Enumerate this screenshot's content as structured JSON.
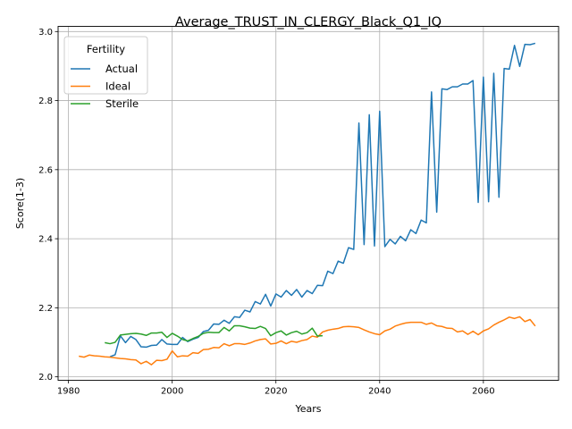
{
  "chart_data": {
    "type": "line",
    "title": "Average_TRUST_IN_CLERGY_Black_Q1_IQ",
    "xlabel": "Years",
    "ylabel": "Score(1-3)",
    "xlim": [
      1978,
      2074.5
    ],
    "ylim": [
      1.99,
      3.015
    ],
    "xticks": [
      1980,
      2000,
      2020,
      2040,
      2060
    ],
    "yticks": [
      2.0,
      2.2,
      2.4,
      2.6,
      2.8,
      3.0
    ],
    "ytick_labels": [
      "2.0",
      "2.2",
      "2.4",
      "2.6",
      "2.8",
      "3.0"
    ],
    "grid": true,
    "legend": {
      "title": "Fertility",
      "position": "top-left"
    },
    "series": [
      {
        "name": "Actual",
        "color": "#1f77b4",
        "x": [
          1988,
          1989,
          1990,
          1991,
          1992,
          1993,
          1994,
          1995,
          1996,
          1997,
          1998,
          1999,
          2000,
          2001,
          2002,
          2003,
          2004,
          2005,
          2006,
          2007,
          2008,
          2009,
          2010,
          2011,
          2012,
          2013,
          2014,
          2015,
          2016,
          2017,
          2018,
          2019,
          2020,
          2021,
          2022,
          2023,
          2024,
          2025,
          2026,
          2027,
          2028,
          2029,
          2030,
          2031,
          2032,
          2033,
          2034,
          2035,
          2036,
          2037,
          2038,
          2039,
          2040,
          2041,
          2042,
          2043,
          2044,
          2045,
          2046,
          2047,
          2048,
          2049,
          2050,
          2051,
          2052,
          2053,
          2054,
          2055,
          2056,
          2057,
          2058,
          2059,
          2060,
          2061,
          2062,
          2063,
          2064,
          2065,
          2066,
          2067,
          2068,
          2069,
          2070
        ],
        "y": [
          2.058,
          2.064,
          2.119,
          2.099,
          2.117,
          2.108,
          2.087,
          2.086,
          2.091,
          2.092,
          2.108,
          2.095,
          2.094,
          2.094,
          2.114,
          2.102,
          2.109,
          2.114,
          2.131,
          2.135,
          2.153,
          2.152,
          2.164,
          2.155,
          2.174,
          2.172,
          2.193,
          2.188,
          2.218,
          2.211,
          2.239,
          2.205,
          2.24,
          2.231,
          2.25,
          2.236,
          2.253,
          2.231,
          2.25,
          2.241,
          2.265,
          2.264,
          2.306,
          2.299,
          2.335,
          2.329,
          2.374,
          2.369,
          2.735,
          2.383,
          2.759,
          2.379,
          2.769,
          2.377,
          2.398,
          2.385,
          2.407,
          2.394,
          2.426,
          2.415,
          2.454,
          2.446,
          2.825,
          2.477,
          2.834,
          2.832,
          2.84,
          2.84,
          2.848,
          2.848,
          2.858,
          2.505,
          2.868,
          2.507,
          2.879,
          2.52,
          2.893,
          2.891,
          2.96,
          2.899,
          2.963,
          2.962,
          2.966
        ]
      },
      {
        "name": "Ideal",
        "color": "#ff7f0e",
        "x": [
          1982,
          1983,
          1984,
          1985,
          1986,
          1987,
          1988,
          1989,
          1990,
          1991,
          1992,
          1993,
          1994,
          1995,
          1996,
          1997,
          1998,
          1999,
          2000,
          2001,
          2002,
          2003,
          2004,
          2005,
          2006,
          2007,
          2008,
          2009,
          2010,
          2011,
          2012,
          2013,
          2014,
          2015,
          2016,
          2017,
          2018,
          2019,
          2020,
          2021,
          2022,
          2023,
          2024,
          2025,
          2026,
          2027,
          2028,
          2029,
          2030,
          2031,
          2032,
          2033,
          2034,
          2035,
          2036,
          2037,
          2038,
          2039,
          2040,
          2041,
          2042,
          2043,
          2044,
          2045,
          2046,
          2047,
          2048,
          2049,
          2050,
          2051,
          2052,
          2053,
          2054,
          2055,
          2056,
          2057,
          2058,
          2059,
          2060,
          2061,
          2062,
          2063,
          2064,
          2065,
          2066,
          2067,
          2068,
          2069,
          2070
        ],
        "y": [
          2.06,
          2.057,
          2.063,
          2.061,
          2.06,
          2.058,
          2.057,
          2.055,
          2.053,
          2.052,
          2.05,
          2.049,
          2.038,
          2.045,
          2.035,
          2.048,
          2.047,
          2.051,
          2.075,
          2.058,
          2.061,
          2.06,
          2.07,
          2.068,
          2.079,
          2.08,
          2.085,
          2.084,
          2.096,
          2.09,
          2.096,
          2.096,
          2.094,
          2.098,
          2.104,
          2.108,
          2.11,
          2.095,
          2.097,
          2.104,
          2.096,
          2.103,
          2.1,
          2.105,
          2.108,
          2.118,
          2.115,
          2.13,
          2.135,
          2.138,
          2.14,
          2.145,
          2.146,
          2.145,
          2.143,
          2.136,
          2.13,
          2.125,
          2.122,
          2.133,
          2.138,
          2.147,
          2.152,
          2.156,
          2.158,
          2.158,
          2.158,
          2.152,
          2.156,
          2.148,
          2.146,
          2.141,
          2.14,
          2.13,
          2.133,
          2.123,
          2.132,
          2.122,
          2.133,
          2.139,
          2.15,
          2.158,
          2.165,
          2.173,
          2.169,
          2.174,
          2.16,
          2.166,
          2.147
        ]
      },
      {
        "name": "Sterile",
        "color": "#2ca02c",
        "x": [
          1987,
          1988,
          1989,
          1990,
          1991,
          1992,
          1993,
          1994,
          1995,
          1996,
          1997,
          1998,
          1999,
          2000,
          2001,
          2002,
          2003,
          2004,
          2005,
          2006,
          2007,
          2008,
          2009,
          2010,
          2011,
          2012,
          2013,
          2014,
          2015,
          2016,
          2017,
          2018,
          2019,
          2020,
          2021,
          2022,
          2023,
          2024,
          2025,
          2026,
          2027,
          2028,
          2029
        ],
        "y": [
          2.099,
          2.096,
          2.1,
          2.121,
          2.123,
          2.125,
          2.126,
          2.124,
          2.12,
          2.127,
          2.127,
          2.129,
          2.114,
          2.126,
          2.118,
          2.108,
          2.104,
          2.111,
          2.117,
          2.126,
          2.129,
          2.128,
          2.128,
          2.143,
          2.133,
          2.148,
          2.148,
          2.145,
          2.141,
          2.14,
          2.146,
          2.14,
          2.119,
          2.128,
          2.133,
          2.121,
          2.128,
          2.132,
          2.124,
          2.128,
          2.141,
          2.118,
          2.119
        ]
      }
    ]
  }
}
